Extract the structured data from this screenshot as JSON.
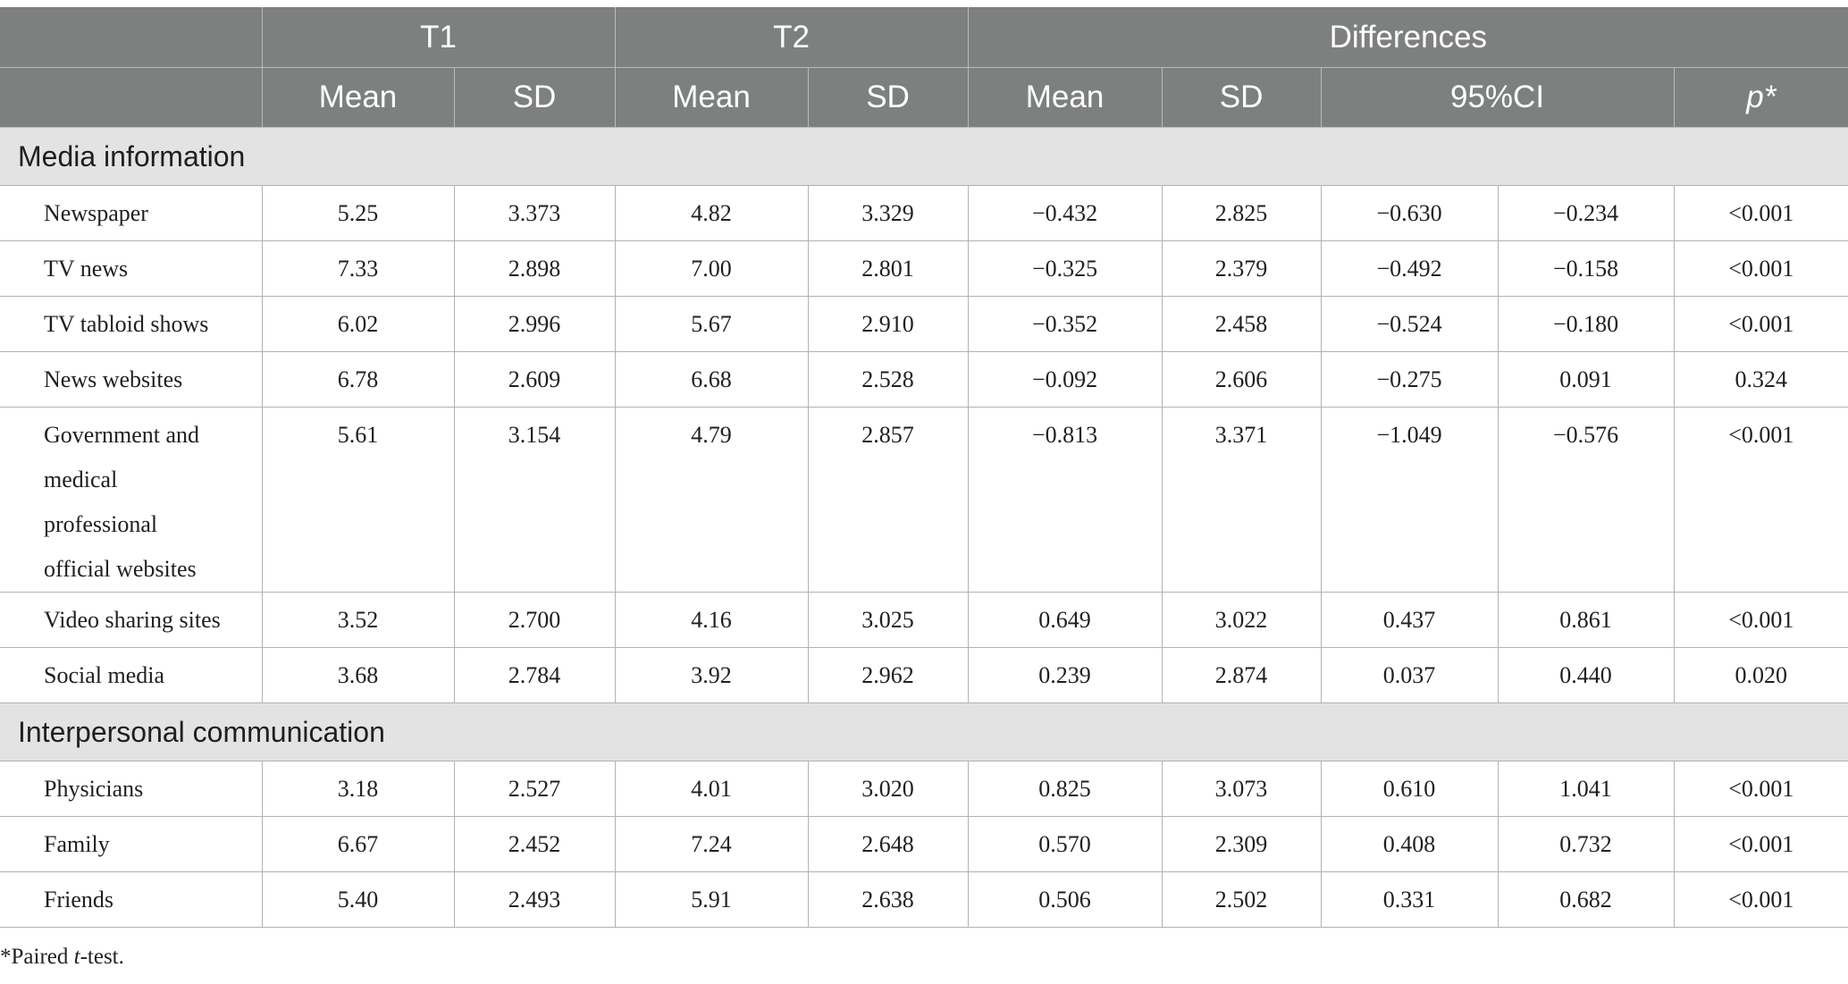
{
  "header": {
    "groups": [
      "T1",
      "T2",
      "Differences"
    ],
    "subheaders": [
      "Mean",
      "SD",
      "Mean",
      "SD",
      "Mean",
      "SD",
      "95%CI",
      "p*"
    ]
  },
  "sections": [
    {
      "title": "Media information",
      "rows": [
        {
          "label": "Newspaper",
          "values": [
            "5.25",
            "3.373",
            "4.82",
            "3.329",
            "−0.432",
            "2.825",
            "−0.630",
            "−0.234",
            "<0.001"
          ]
        },
        {
          "label": "TV news",
          "values": [
            "7.33",
            "2.898",
            "7.00",
            "2.801",
            "−0.325",
            "2.379",
            "−0.492",
            "−0.158",
            "<0.001"
          ]
        },
        {
          "label": "TV tabloid shows",
          "values": [
            "6.02",
            "2.996",
            "5.67",
            "2.910",
            "−0.352",
            "2.458",
            "−0.524",
            "−0.180",
            "<0.001"
          ]
        },
        {
          "label": "News websites",
          "values": [
            "6.78",
            "2.609",
            "6.68",
            "2.528",
            "−0.092",
            "2.606",
            "−0.275",
            "0.091",
            "0.324"
          ]
        },
        {
          "label": "Government and medical professional official websites",
          "values": [
            "5.61",
            "3.154",
            "4.79",
            "2.857",
            "−0.813",
            "3.371",
            "−1.049",
            "−0.576",
            "<0.001"
          ]
        },
        {
          "label": "Video sharing sites",
          "values": [
            "3.52",
            "2.700",
            "4.16",
            "3.025",
            "0.649",
            "3.022",
            "0.437",
            "0.861",
            "<0.001"
          ]
        },
        {
          "label": "Social media",
          "values": [
            "3.68",
            "2.784",
            "3.92",
            "2.962",
            "0.239",
            "2.874",
            "0.037",
            "0.440",
            "0.020"
          ]
        }
      ]
    },
    {
      "title": "Interpersonal communication",
      "rows": [
        {
          "label": "Physicians",
          "values": [
            "3.18",
            "2.527",
            "4.01",
            "3.020",
            "0.825",
            "3.073",
            "0.610",
            "1.041",
            "<0.001"
          ]
        },
        {
          "label": "Family",
          "values": [
            "6.67",
            "2.452",
            "7.24",
            "2.648",
            "0.570",
            "2.309",
            "0.408",
            "0.732",
            "<0.001"
          ]
        },
        {
          "label": "Friends",
          "values": [
            "5.40",
            "2.493",
            "5.91",
            "2.638",
            "0.506",
            "2.502",
            "0.331",
            "0.682",
            "<0.001"
          ]
        }
      ]
    }
  ],
  "footnote": {
    "prefix": "*Paired ",
    "italic": "t",
    "suffix": "-test."
  }
}
